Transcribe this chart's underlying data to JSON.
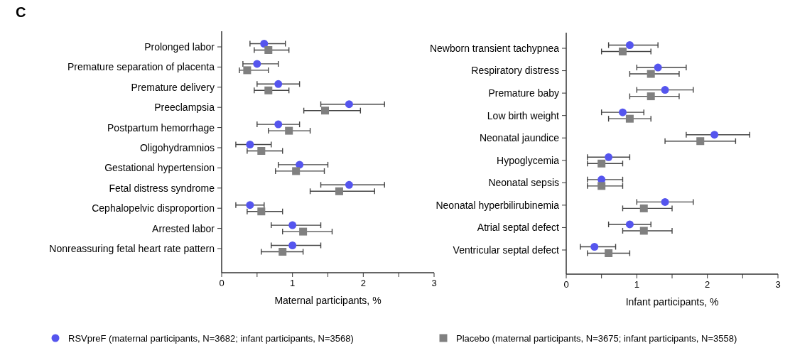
{
  "chart_data": [
    {
      "type": "scatter",
      "title": "C",
      "orientation": "horizontal",
      "xlabel": "Maternal participants, %",
      "legend": "bottom",
      "grid": false,
      "categories": [
        "Prolonged labor",
        "Premature separation of placenta",
        "Premature delivery",
        "Preeclampsia",
        "Postpartum hemorrhage",
        "Oligohydramnios",
        "Gestational hypertension",
        "Fetal distress syndrome",
        "Cephalopelvic disproportion",
        "Arrested labor",
        "Nonreassuring fetal heart rate pattern"
      ],
      "xlim": [
        0,
        3
      ],
      "xticks": [
        0,
        {
          "value": 0.5,
          "label": null
        },
        1,
        {
          "value": 1.5,
          "label": null
        },
        2,
        {
          "value": 2.5,
          "label": null
        },
        3
      ],
      "series": [
        {
          "name": "RSVpreF (maternal participants, N=3682; infant participants, N=3568)",
          "color": "#5555ee",
          "marker": "circle",
          "values": [
            0.6,
            0.5,
            0.8,
            1.8,
            0.8,
            0.4,
            1.1,
            1.8,
            0.4,
            1.0,
            1.0
          ],
          "errors": [
            [
              0.4,
              0.9
            ],
            [
              0.3,
              0.8
            ],
            [
              0.5,
              1.1
            ],
            [
              1.4,
              2.3
            ],
            [
              0.5,
              1.1
            ],
            [
              0.2,
              0.7
            ],
            [
              0.8,
              1.5
            ],
            [
              1.4,
              2.3
            ],
            [
              0.2,
              0.6
            ],
            [
              0.7,
              1.4
            ],
            [
              0.7,
              1.4
            ]
          ]
        },
        {
          "name": "Placebo (maternal participants, N=3675; infant participants, N=3558)",
          "color": "#808080",
          "marker": "square",
          "values": [
            0.66,
            0.36,
            0.66,
            1.46,
            0.95,
            0.56,
            1.05,
            1.66,
            0.56,
            1.15,
            0.86
          ],
          "errors": [
            [
              0.46,
              0.95
            ],
            [
              0.25,
              0.66
            ],
            [
              0.46,
              0.95
            ],
            [
              1.16,
              1.96
            ],
            [
              0.66,
              1.25
            ],
            [
              0.36,
              0.86
            ],
            [
              0.76,
              1.45
            ],
            [
              1.25,
              2.16
            ],
            [
              0.36,
              0.86
            ],
            [
              0.86,
              1.56
            ],
            [
              0.56,
              1.15
            ]
          ]
        }
      ]
    },
    {
      "type": "scatter",
      "orientation": "horizontal",
      "xlabel": "Infant participants, %",
      "grid": false,
      "categories": [
        "Newborn transient tachypnea",
        "Respiratory distress",
        "Premature baby",
        "Low birth weight",
        "Neonatal jaundice",
        "Hypoglycemia",
        "Neonatal sepsis",
        "Neonatal hyperbilirubinemia",
        "Atrial septal defect",
        "Ventricular septal defect"
      ],
      "xlim": [
        0,
        3
      ],
      "xticks": [
        0,
        {
          "value": 0.5,
          "label": null
        },
        1,
        {
          "value": 1.5,
          "label": null
        },
        2,
        {
          "value": 2.5,
          "label": null
        },
        3
      ],
      "series": [
        {
          "color": "#5555ee",
          "marker": "circle",
          "values": [
            0.9,
            1.3,
            1.4,
            0.8,
            2.1,
            0.6,
            0.5,
            1.4,
            0.9,
            0.4
          ],
          "errors": [
            [
              0.6,
              1.3
            ],
            [
              1.0,
              1.7
            ],
            [
              1.0,
              1.8
            ],
            [
              0.5,
              1.1
            ],
            [
              1.7,
              2.6
            ],
            [
              0.3,
              0.9
            ],
            [
              0.3,
              0.8
            ],
            [
              1.0,
              1.8
            ],
            [
              0.6,
              1.2
            ],
            [
              0.2,
              0.7
            ]
          ]
        },
        {
          "color": "#808080",
          "marker": "square",
          "values": [
            0.8,
            1.2,
            1.2,
            0.9,
            1.9,
            0.5,
            0.5,
            1.1,
            1.1,
            0.6
          ],
          "errors": [
            [
              0.5,
              1.2
            ],
            [
              0.9,
              1.6
            ],
            [
              0.9,
              1.6
            ],
            [
              0.6,
              1.2
            ],
            [
              1.4,
              2.4
            ],
            [
              0.3,
              0.8
            ],
            [
              0.3,
              0.8
            ],
            [
              0.8,
              1.5
            ],
            [
              0.8,
              1.5
            ],
            [
              0.3,
              0.9
            ]
          ]
        }
      ]
    }
  ]
}
